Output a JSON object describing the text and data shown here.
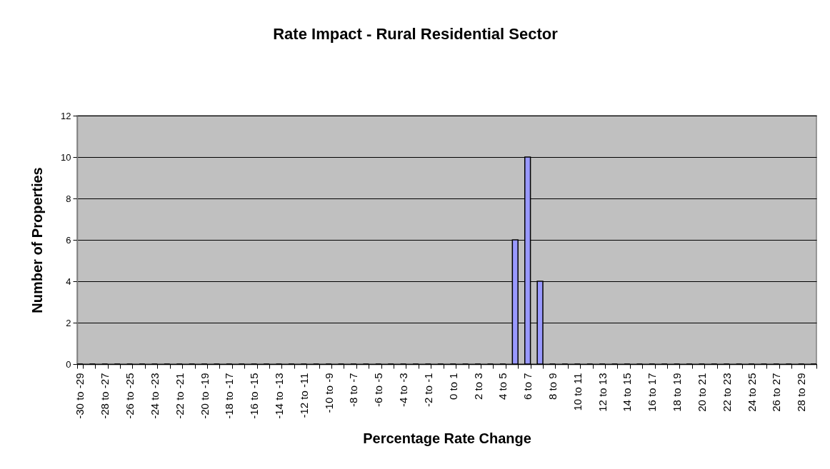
{
  "chart_data": {
    "type": "bar",
    "title": "Rate Impact - Rural Residential Sector",
    "xlabel": "Percentage Rate Change",
    "ylabel": "Number of Properties",
    "categories": [
      "-30 to -29",
      null,
      "-28 to -27",
      null,
      "-26 to -25",
      null,
      "-24 to -23",
      null,
      "-22 to -21",
      null,
      "-20 to -19",
      null,
      "-18 to -17",
      null,
      "-16 to -15",
      null,
      "-14 to -13",
      null,
      "-12 to -11",
      null,
      "-10 to -9",
      null,
      "-8 to -7",
      null,
      "-6 to -5",
      null,
      "-4 to -3",
      null,
      "-2 to -1",
      null,
      "0 to 1",
      null,
      "2 to 3",
      null,
      "4 to 5",
      null,
      "6 to 7",
      null,
      "8 to 9",
      null,
      "10 to 11",
      null,
      "12 to 13",
      null,
      "14 to 15",
      null,
      "16 to 17",
      null,
      "18 to 19",
      null,
      "20 to 21",
      null,
      "22 to 23",
      null,
      "24 to 25",
      null,
      "26 to 27",
      null,
      "28 to 29",
      null
    ],
    "values": [
      0,
      0,
      0,
      0,
      0,
      0,
      0,
      0,
      0,
      0,
      0,
      0,
      0,
      0,
      0,
      0,
      0,
      0,
      0,
      0,
      0,
      0,
      0,
      0,
      0,
      0,
      0,
      0,
      0,
      0,
      0,
      0,
      0,
      0,
      0,
      6,
      10,
      4,
      0,
      0,
      0,
      0,
      0,
      0,
      0,
      0,
      0,
      0,
      0,
      0,
      0,
      0,
      0,
      0,
      0,
      0,
      0,
      0,
      0,
      0
    ],
    "color": "#9999ff",
    "ylim": [
      0,
      12
    ],
    "yticks": [
      0,
      2,
      4,
      6,
      8,
      10,
      12
    ],
    "grid": "y"
  }
}
